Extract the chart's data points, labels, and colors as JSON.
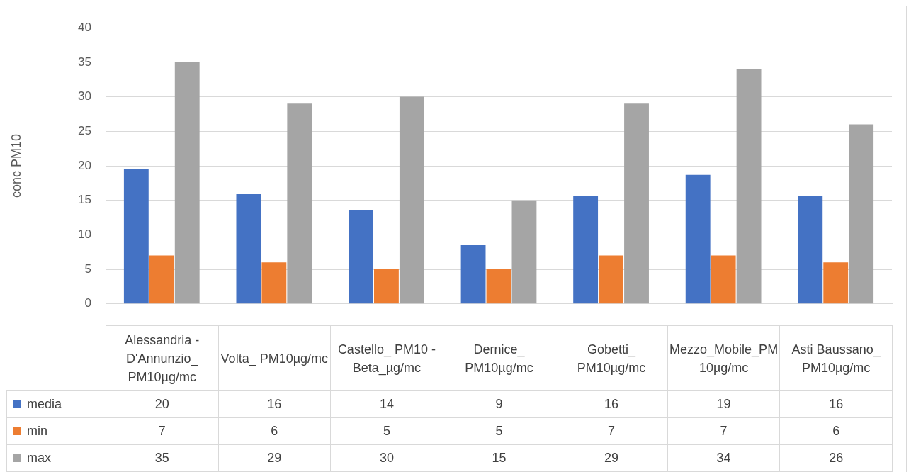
{
  "chart_data": {
    "type": "bar",
    "ylabel": "conc PM10",
    "categories": [
      "Alessandria - D'Annunzio_ PM10µg/mc",
      "Volta_ PM10µg/mc",
      "Castello_ PM10 - Beta_µg/mc",
      "Dernice_ PM10µg/mc",
      "Gobetti_ PM10µg/mc",
      "Mezzo_Mobile_PM10µg/mc",
      "Asti Baussano_ PM10µg/mc"
    ],
    "series": [
      {
        "name": "media",
        "color": "#4472c4",
        "values": [
          19.5,
          15.9,
          13.6,
          8.5,
          15.6,
          18.7,
          15.6
        ],
        "value_labels": [
          "20",
          "16",
          "14",
          "9",
          "16",
          "19",
          "16"
        ]
      },
      {
        "name": "min",
        "color": "#ed7d31",
        "values": [
          7,
          6,
          5,
          5,
          7,
          7,
          6
        ],
        "value_labels": [
          "7",
          "6",
          "5",
          "5",
          "7",
          "7",
          "6"
        ]
      },
      {
        "name": "max",
        "color": "#a5a5a5",
        "values": [
          35,
          29,
          30,
          15,
          29,
          34,
          26
        ],
        "value_labels": [
          "35",
          "29",
          "30",
          "15",
          "29",
          "34",
          "26"
        ]
      }
    ],
    "ylim": [
      0,
      40
    ],
    "yticks": [
      0,
      5,
      10,
      15,
      20,
      25,
      30,
      35,
      40
    ],
    "grid": "y",
    "legend": "bottom"
  }
}
